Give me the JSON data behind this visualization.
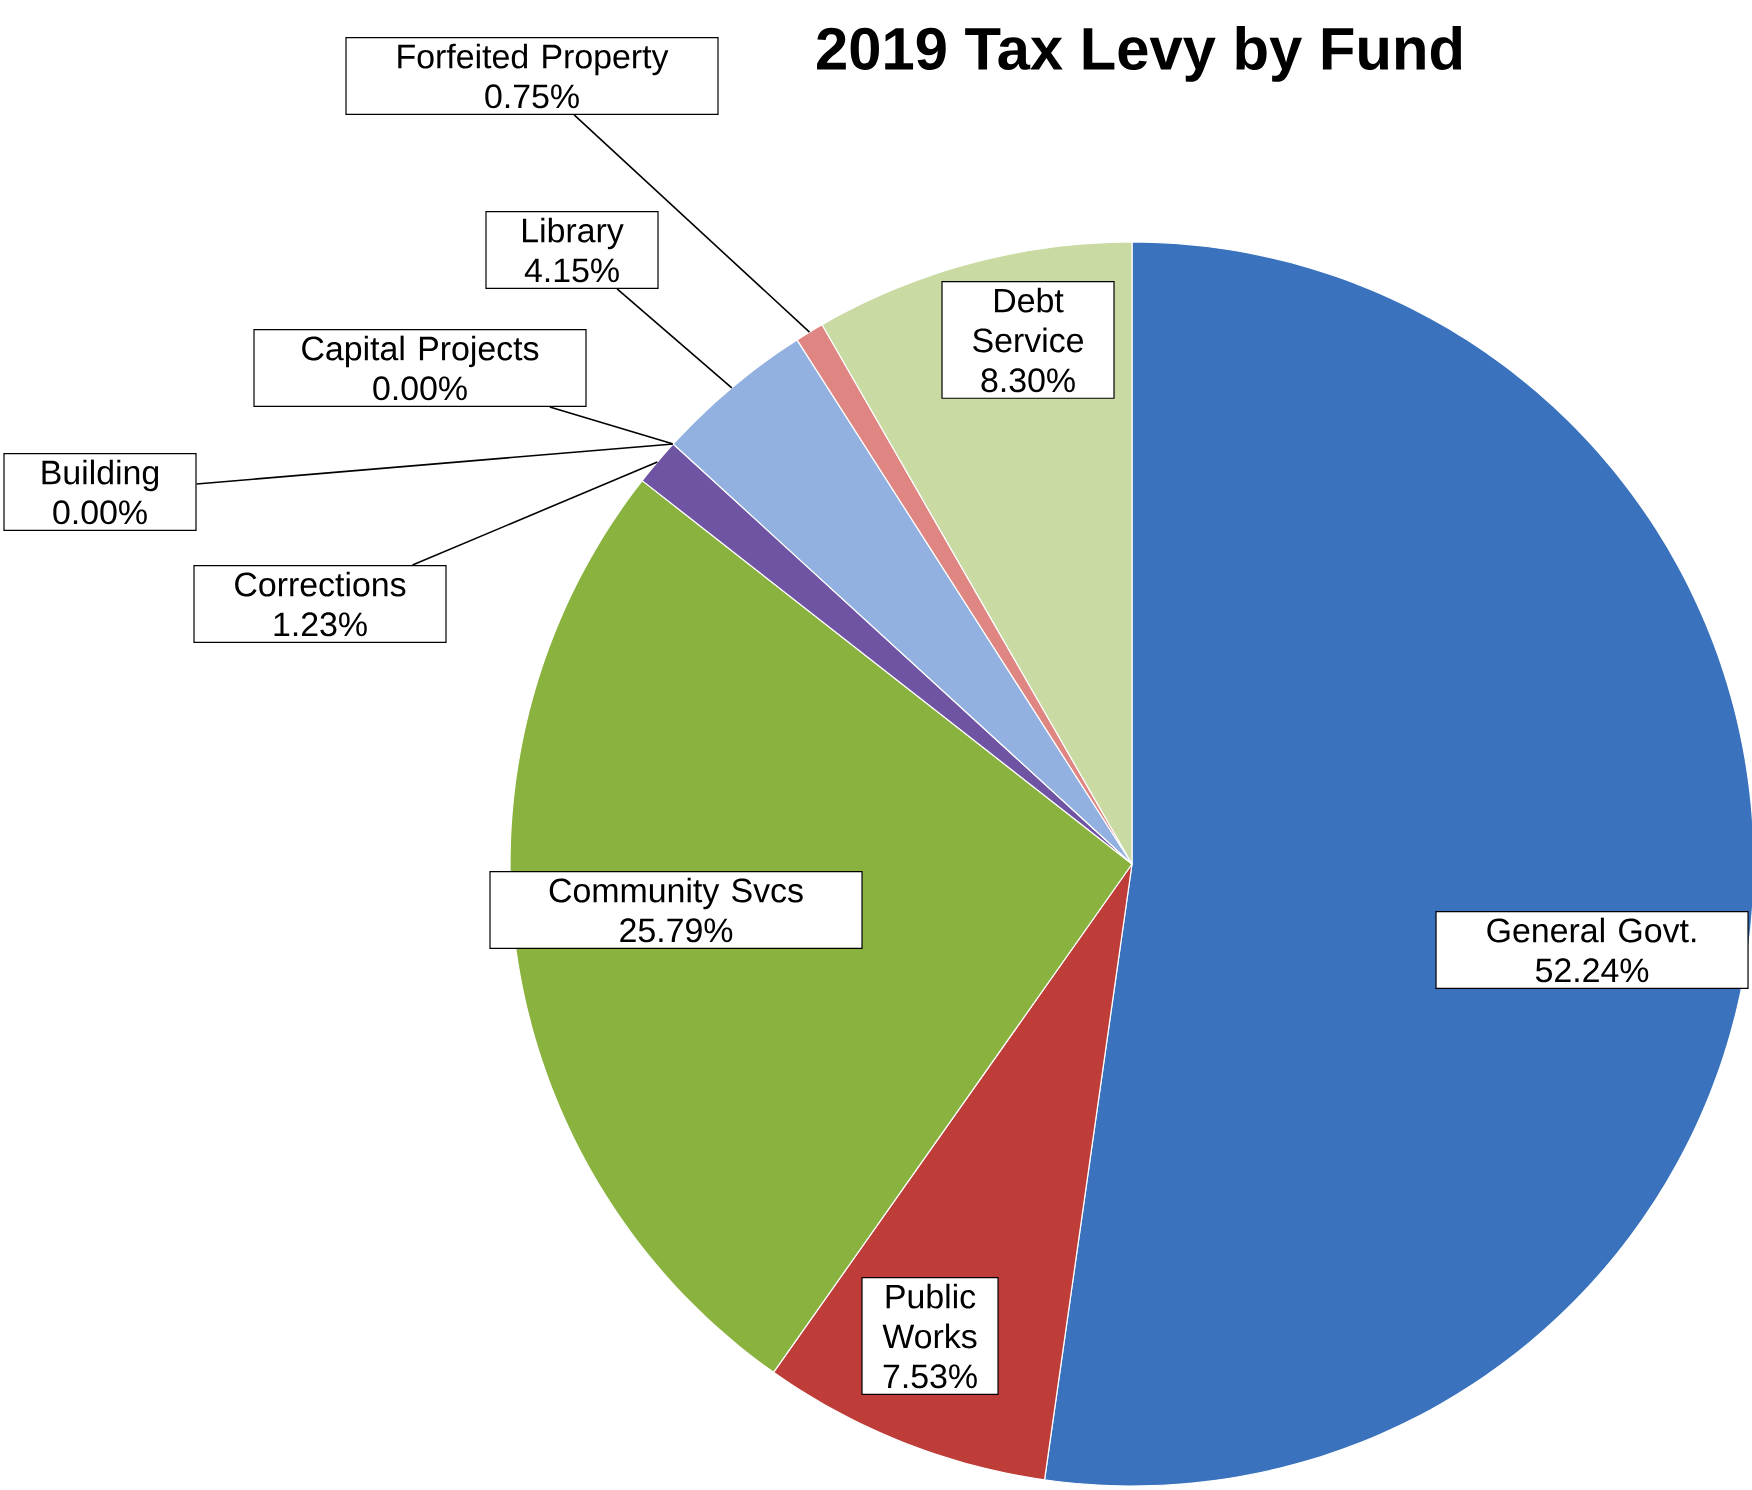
{
  "chart_data": {
    "type": "pie",
    "title": "2019 Tax Levy by Fund",
    "categories": [
      "General Govt.",
      "Public Works",
      "Community Svcs",
      "Corrections",
      "Building",
      "Capital Projects",
      "Library",
      "Forfeited Property",
      "Debt Service"
    ],
    "values": [
      52.24,
      7.53,
      25.79,
      1.23,
      0.0,
      0.0,
      4.15,
      0.75,
      8.3
    ],
    "colors": [
      "#3a72bd",
      "#be3d38",
      "#8ab23e",
      "#6f54a3",
      "#4f8fc0",
      "#d8893a",
      "#92b1e0",
      "#e08682",
      "#c9daa2"
    ],
    "value_labels": [
      "52.24%",
      "7.53%",
      "25.79%",
      "1.23%",
      "0.00%",
      "0.00%",
      "4.15%",
      "0.75%",
      "8.30%"
    ]
  }
}
